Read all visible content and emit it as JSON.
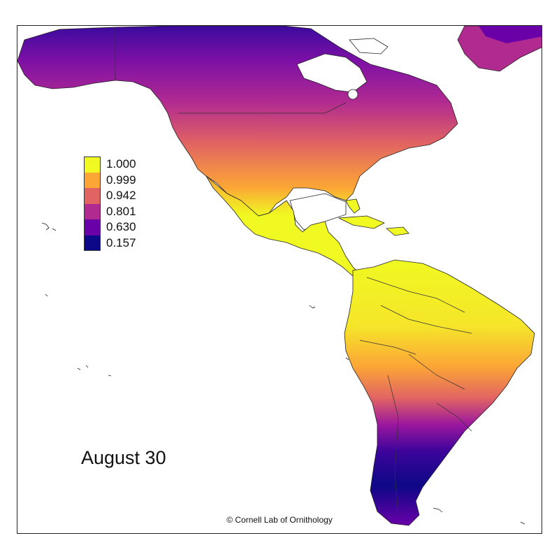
{
  "title": "August 30",
  "credit": "© Cornell Lab of Ornithology",
  "legend": {
    "items": [
      {
        "label": "1.000",
        "color": "#f0f921"
      },
      {
        "label": "0.999",
        "color": "#fca636"
      },
      {
        "label": "0.942",
        "color": "#e16462"
      },
      {
        "label": "0.801",
        "color": "#b12a90"
      },
      {
        "label": "0.630",
        "color": "#6a00a8"
      },
      {
        "label": "0.157",
        "color": "#0d0887"
      }
    ]
  },
  "map": {
    "name": "relative-abundance-map",
    "colors": {
      "border": "#111111",
      "land_outline": "#222222",
      "background": "#ffffff"
    }
  }
}
